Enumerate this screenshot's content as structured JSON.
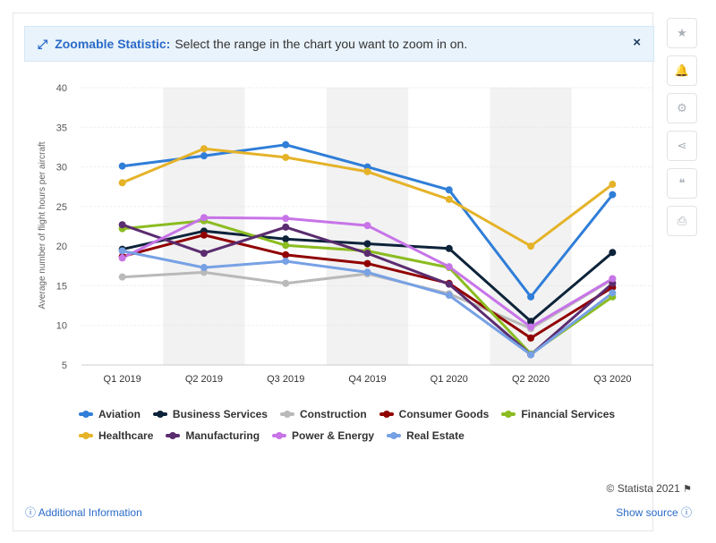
{
  "banner": {
    "icon": "expand-arrows-icon",
    "bold": "Zoomable Statistic:",
    "text": "Select the range in the chart you want to zoom in on.",
    "close": "×"
  },
  "toolbar": [
    {
      "name": "star-icon",
      "glyph": "★"
    },
    {
      "name": "bell-icon",
      "glyph": "🔔"
    },
    {
      "name": "gear-icon",
      "glyph": "⚙"
    },
    {
      "name": "share-icon",
      "glyph": "⋖"
    },
    {
      "name": "quote-icon",
      "glyph": "❝"
    },
    {
      "name": "print-icon",
      "glyph": "⎙"
    }
  ],
  "chart_data": {
    "type": "line",
    "title": "",
    "xlabel": "",
    "ylabel": "Average number of flight hours per aircraft",
    "ylim": [
      5,
      40
    ],
    "yticks": [
      5,
      10,
      15,
      20,
      25,
      30,
      35,
      40
    ],
    "grid": true,
    "legend_position": "bottom",
    "categories": [
      "Q1 2019",
      "Q2 2019",
      "Q3 2019",
      "Q4 2019",
      "Q1 2020",
      "Q2 2020",
      "Q3 2020"
    ],
    "series": [
      {
        "name": "Aviation",
        "color": "#2f7ed8",
        "values": [
          30.1,
          31.4,
          32.8,
          30.0,
          27.1,
          13.6,
          26.5
        ]
      },
      {
        "name": "Business Services",
        "color": "#0d233a",
        "values": [
          19.6,
          21.9,
          20.9,
          20.3,
          19.7,
          10.5,
          19.2
        ]
      },
      {
        "name": "Construction",
        "color": "#b9b9b9",
        "values": [
          16.1,
          16.7,
          15.3,
          16.5,
          14.0,
          9.6,
          15.8
        ]
      },
      {
        "name": "Consumer Goods",
        "color": "#910000",
        "values": [
          18.7,
          21.4,
          18.9,
          17.8,
          15.3,
          8.4,
          14.8
        ]
      },
      {
        "name": "Financial Services",
        "color": "#8bbc21",
        "values": [
          22.2,
          23.2,
          20.1,
          19.4,
          17.3,
          6.4,
          13.6
        ]
      },
      {
        "name": "Healthcare",
        "color": "#e5b329",
        "values": [
          28.0,
          32.3,
          31.2,
          29.4,
          25.9,
          20.0,
          27.8
        ]
      },
      {
        "name": "Manufacturing",
        "color": "#5b2c6f",
        "values": [
          22.7,
          19.1,
          22.4,
          19.1,
          15.2,
          6.3,
          15.3
        ]
      },
      {
        "name": "Power & Energy",
        "color": "#c774e8",
        "values": [
          18.5,
          23.6,
          23.5,
          22.6,
          17.4,
          9.8,
          15.9
        ]
      },
      {
        "name": "Real Estate",
        "color": "#77a1e5",
        "values": [
          19.4,
          17.3,
          18.1,
          16.7,
          13.8,
          6.3,
          14.1
        ]
      }
    ]
  },
  "footer": {
    "credit": "© Statista 2021",
    "flag_icon": "flag-icon",
    "additional_info": "Additional Information",
    "show_source": "Show source",
    "info_glyph": "ⓘ"
  }
}
